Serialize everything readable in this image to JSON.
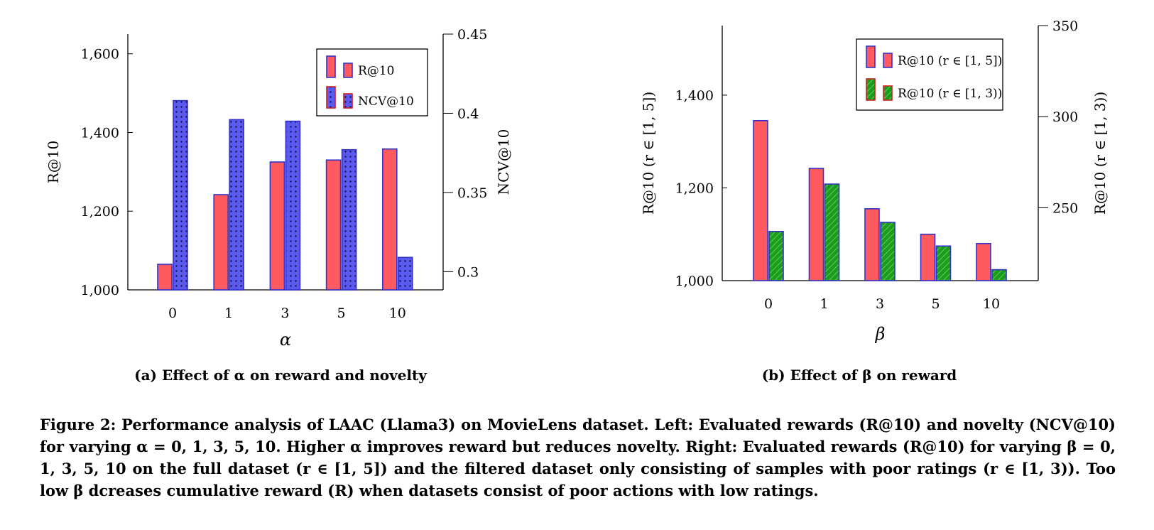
{
  "chart_data": [
    {
      "type": "bar",
      "subcaption": "(a) Effect of α on reward and novelty",
      "categories": [
        "0",
        "1",
        "3",
        "5",
        "10"
      ],
      "xlabel": "α",
      "ylabel": "R@10",
      "y2label": "NCV@10",
      "ylim": [
        1000,
        1650
      ],
      "y2lim": [
        0.29,
        0.45
      ],
      "yticks": [
        "1,000",
        "1,200",
        "1,400",
        "1,600"
      ],
      "y2ticks": [
        "0.3",
        "0.35",
        "0.4",
        "0.45"
      ],
      "legend_position": "top-right",
      "series": [
        {
          "name": "R@10",
          "axis": "left",
          "color": "#ff5a5f",
          "edge": "#3333cc",
          "pattern": "solid",
          "values": [
            1065,
            1242,
            1325,
            1330,
            1358
          ]
        },
        {
          "name": "NCV@10",
          "axis": "right",
          "color": "#5a5af0",
          "edge": "#3333cc",
          "pattern": "dots",
          "values": [
            0.408,
            0.396,
            0.395,
            0.377,
            0.309
          ]
        }
      ]
    },
    {
      "type": "bar",
      "subcaption": "(b) Effect of β on reward",
      "categories": [
        "0",
        "1",
        "3",
        "5",
        "10"
      ],
      "xlabel": "β",
      "ylabel": "R@10 (r ∈ [1, 5])",
      "y2label": "R@10 (r ∈ [1, 3))",
      "ylim": [
        1000,
        1550
      ],
      "y2lim": [
        210,
        350
      ],
      "yticks": [
        "1,000",
        "1,200",
        "1,400"
      ],
      "y2ticks": [
        "250",
        "300",
        "350"
      ],
      "legend_position": "top-right",
      "series": [
        {
          "name": "R@10 (r ∈ [1, 5])",
          "axis": "left",
          "color": "#ff5a5f",
          "edge": "#3333cc",
          "pattern": "solid",
          "values": [
            1345,
            1242,
            1155,
            1100,
            1080
          ]
        },
        {
          "name": "R@10 (r ∈ [1, 3))",
          "axis": "right",
          "color": "#1a9e1a",
          "edge": "#3333cc",
          "pattern": "hatch",
          "values": [
            237,
            263,
            242,
            229,
            216
          ]
        }
      ]
    }
  ],
  "caption": "Figure 2: Performance analysis of LAAC (Llama3) on MovieLens dataset. Left: Evaluated rewards (R@10) and novelty (NCV@10) for varying α = 0, 1, 3, 5, 10. Higher α improves reward but reduces novelty. Right: Evaluated rewards (R@10) for varying β = 0, 1, 3, 5, 10 on the full dataset (r ∈ [1, 5]) and the filtered dataset only consisting of samples with poor ratings (r ∈ [1, 3)). Too low β dcreases cumulative reward (R) when datasets consist of poor actions with low ratings."
}
